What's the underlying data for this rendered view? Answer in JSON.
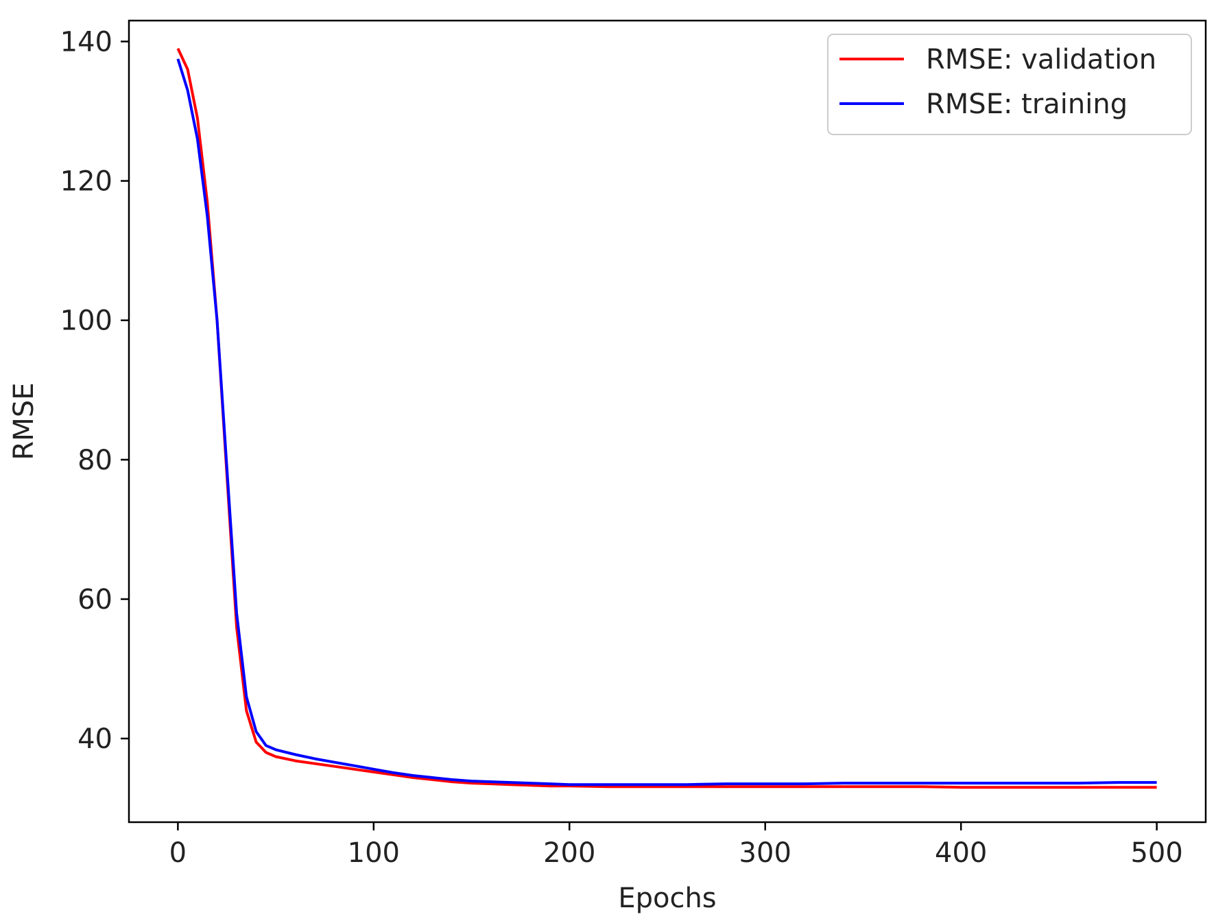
{
  "chart_data": {
    "type": "line",
    "title": "",
    "xlabel": "Epochs",
    "ylabel": "RMSE",
    "xlim": [
      -25,
      525
    ],
    "ylim": [
      28,
      143
    ],
    "x_ticks": [
      0,
      100,
      200,
      300,
      400,
      500
    ],
    "y_ticks": [
      40,
      60,
      80,
      100,
      120,
      140
    ],
    "grid": false,
    "legend_position": "top-right",
    "series": [
      {
        "name": "RMSE: validation",
        "color": "#ff0000",
        "x": [
          0,
          5,
          10,
          15,
          20,
          25,
          30,
          35,
          40,
          45,
          50,
          60,
          70,
          80,
          90,
          100,
          110,
          120,
          130,
          140,
          150,
          160,
          170,
          180,
          190,
          200,
          220,
          240,
          260,
          280,
          300,
          320,
          340,
          360,
          380,
          400,
          420,
          440,
          460,
          480,
          500
        ],
        "y": [
          139,
          136,
          129,
          117,
          100,
          78,
          56,
          44,
          39.5,
          38,
          37.4,
          36.8,
          36.4,
          36,
          35.6,
          35.2,
          34.8,
          34.4,
          34.1,
          33.8,
          33.6,
          33.5,
          33.4,
          33.3,
          33.2,
          33.2,
          33.1,
          33.1,
          33.1,
          33.1,
          33.1,
          33.1,
          33.1,
          33.1,
          33.1,
          33,
          33,
          33,
          33,
          33,
          33
        ]
      },
      {
        "name": "RMSE: training",
        "color": "#0000ff",
        "x": [
          0,
          5,
          10,
          15,
          20,
          25,
          30,
          35,
          40,
          45,
          50,
          60,
          70,
          80,
          90,
          100,
          110,
          120,
          130,
          140,
          150,
          160,
          170,
          180,
          190,
          200,
          220,
          240,
          260,
          280,
          300,
          320,
          340,
          360,
          380,
          400,
          420,
          440,
          460,
          480,
          500
        ],
        "y": [
          137.5,
          133,
          126,
          115,
          100,
          79,
          58,
          46,
          41,
          39,
          38.4,
          37.7,
          37.1,
          36.6,
          36.1,
          35.6,
          35.1,
          34.7,
          34.4,
          34.1,
          33.9,
          33.8,
          33.7,
          33.6,
          33.5,
          33.4,
          33.4,
          33.4,
          33.4,
          33.5,
          33.5,
          33.5,
          33.6,
          33.6,
          33.6,
          33.6,
          33.6,
          33.6,
          33.6,
          33.7,
          33.7
        ]
      }
    ]
  }
}
